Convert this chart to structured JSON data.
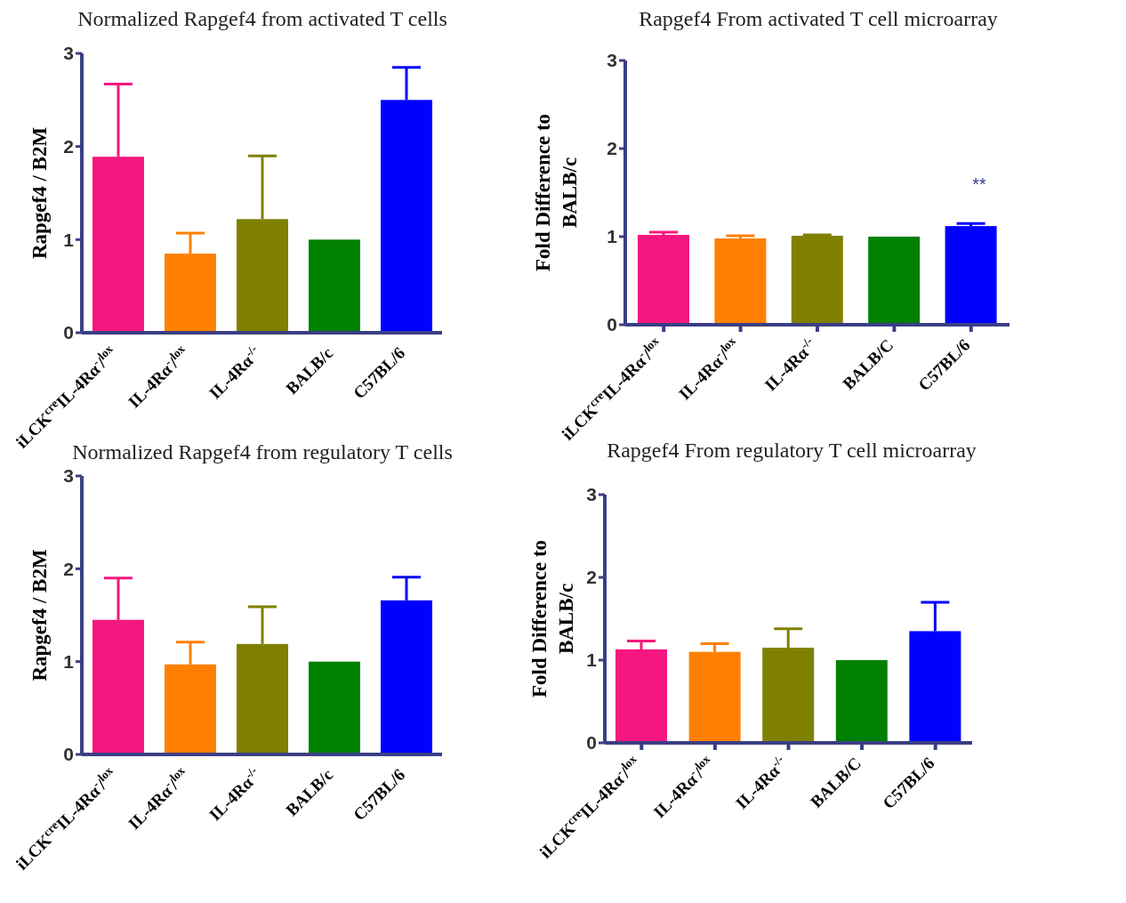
{
  "chart_data": [
    {
      "type": "bar",
      "title": "Normalized Rapgef4 from activated T cells",
      "ylabel": "Rapgef4 / B2M",
      "categories": [
        "iLCK$^{cre}$IL-4Rα$^{-}$/$^{lox}$",
        "IL-4Rα$^{-}$/$^{lox}$",
        "IL-4Rα$^{-/-}$",
        "BALB/c",
        "C57BL/6"
      ],
      "values": [
        1.89,
        0.85,
        1.22,
        1.0,
        2.5
      ],
      "errors": [
        [
          1.89,
          2.67
        ],
        [
          0.85,
          1.07
        ],
        [
          1.22,
          1.9
        ],
        null,
        [
          2.5,
          2.85
        ]
      ],
      "colors": [
        "#f5177f",
        "#ff8000",
        "#808000",
        "#008000",
        "#0000ff"
      ],
      "ylim": [
        0,
        3
      ],
      "yticks": [
        0,
        1,
        2,
        3
      ],
      "grid": false,
      "legend": false
    },
    {
      "type": "bar",
      "title": "Rapgef4 From activated T cell microarray",
      "ylabel": "Fold Difference to\nBALB/c",
      "categories": [
        "iLCK$^{cre}$IL-4Rα$^{-}$/$^{lox}$",
        "IL-4Rα$^{-}$/$^{lox}$",
        "IL-4Rα$^{-/-}$",
        "BALB/C",
        "C57BL/6"
      ],
      "values": [
        1.02,
        0.98,
        1.01,
        1.0,
        1.12
      ],
      "errors": [
        [
          1.02,
          1.05
        ],
        [
          0.98,
          1.01
        ],
        [
          1.01,
          1.02
        ],
        null,
        [
          1.12,
          1.15
        ]
      ],
      "colors": [
        "#f5177f",
        "#ff8000",
        "#808000",
        "#008000",
        "#0000ff"
      ],
      "ylim": [
        0,
        3
      ],
      "yticks": [
        0,
        1,
        2,
        3
      ],
      "grid": false,
      "legend": false,
      "annotations": [
        "**"
      ]
    },
    {
      "type": "bar",
      "title": "Normalized Rapgef4 from regulatory T cells",
      "ylabel": "Rapgef4 / B2M",
      "categories": [
        "iLCK$^{cre}$IL-4Rα$^{-}$/$^{lox}$",
        "IL-4Rα$^{-}$/$^{lox}$",
        "IL-4Rα$^{-/-}$",
        "BALB/c",
        "C57BL/6"
      ],
      "values": [
        1.45,
        0.97,
        1.19,
        1.0,
        1.66
      ],
      "errors": [
        [
          1.45,
          1.9
        ],
        [
          0.97,
          1.21
        ],
        [
          1.19,
          1.59
        ],
        null,
        [
          1.66,
          1.91
        ]
      ],
      "colors": [
        "#f5177f",
        "#ff8000",
        "#808000",
        "#008000",
        "#0000ff"
      ],
      "ylim": [
        0,
        3
      ],
      "yticks": [
        0,
        1,
        2,
        3
      ],
      "grid": false,
      "legend": false
    },
    {
      "type": "bar",
      "title": "Rapgef4 From regulatory T cell microarray",
      "ylabel": "Fold Difference to\nBALB/c",
      "categories": [
        "iLCK$^{cre}$IL-4Rα$^{-}$/$^{lox}$",
        "IL-4Rα$^{-}$/$^{lox}$",
        "IL-4Rα$^{-/-}$",
        "BALB/C",
        "C57BL/6"
      ],
      "values": [
        1.13,
        1.1,
        1.15,
        1.0,
        1.35
      ],
      "errors": [
        [
          1.13,
          1.23
        ],
        [
          1.1,
          1.2
        ],
        [
          1.15,
          1.38
        ],
        null,
        [
          1.35,
          1.7
        ]
      ],
      "colors": [
        "#f5177f",
        "#ff8000",
        "#808000",
        "#008000",
        "#0000ff"
      ],
      "ylim": [
        0,
        3
      ],
      "yticks": [
        0,
        1,
        2,
        3
      ],
      "grid": false,
      "legend": false
    }
  ]
}
